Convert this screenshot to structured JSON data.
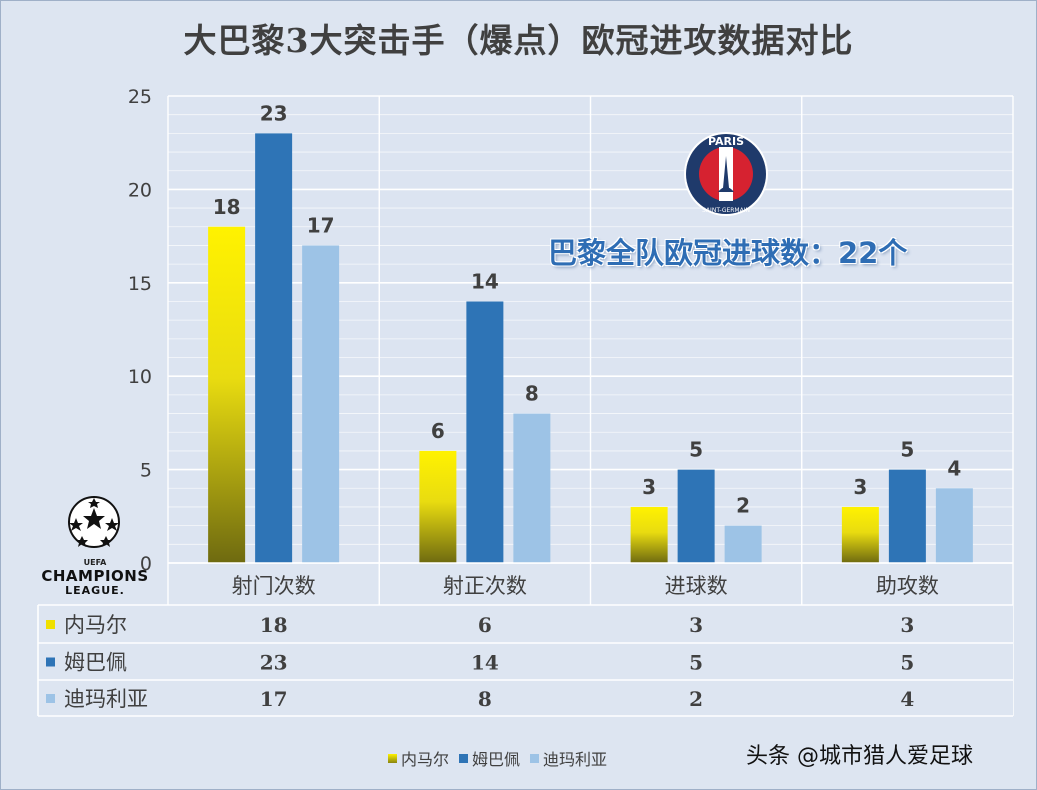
{
  "title": "大巴黎3大突击手（爆点）欧冠进攻数据对比",
  "note": "巴黎全队欧冠进球数：22个",
  "psg_logo": {
    "top_text": "PARIS",
    "bottom_text": "SAINT-GERMAIN"
  },
  "ucl_logo": {
    "line1": "UEFA",
    "line2": "CHAMPIONS",
    "line3": "LEAGUE."
  },
  "watermark": "头条 @城市猎人爱足球",
  "chart_data": {
    "type": "bar",
    "title": "大巴黎3大突击手（爆点）欧冠进攻数据对比",
    "categories": [
      "射门次数",
      "射正次数",
      "进球数",
      "助攻数"
    ],
    "series": [
      {
        "name": "内马尔",
        "values": [
          18,
          6,
          3,
          3
        ],
        "color": "#f5e800"
      },
      {
        "name": "姆巴佩",
        "values": [
          23,
          14,
          5,
          5
        ],
        "color": "#2e74b6"
      },
      {
        "name": "迪玛利亚",
        "values": [
          17,
          8,
          2,
          4
        ],
        "color": "#9dc3e6"
      }
    ],
    "yticks": [
      "0",
      "5",
      "10",
      "15",
      "20",
      "25"
    ],
    "ylim": [
      0,
      25
    ],
    "grid": true,
    "data_table": true,
    "legend_position": "bottom"
  }
}
